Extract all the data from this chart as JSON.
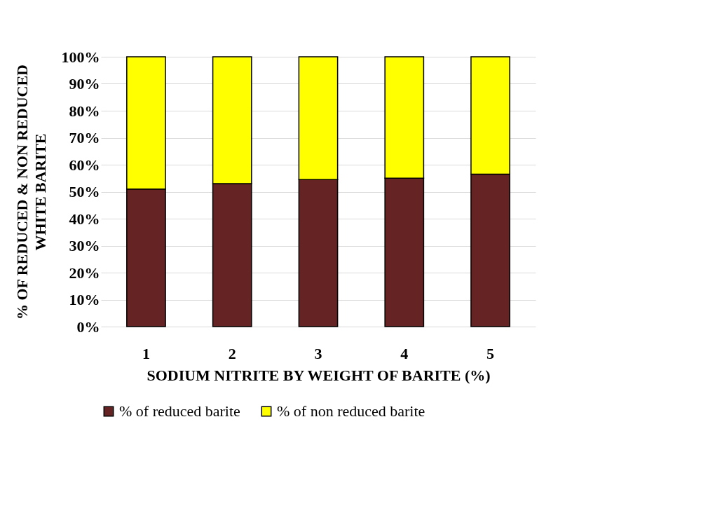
{
  "chart_data": {
    "type": "bar",
    "stacked": true,
    "categories": [
      "1",
      "2",
      "3",
      "4",
      "5"
    ],
    "series": [
      {
        "name": "%  of reduced barite",
        "color": "#652323",
        "values": [
          51,
          53,
          54.5,
          55,
          56.5
        ]
      },
      {
        "name": "%  of non reduced barite",
        "color": "#ffff00",
        "values": [
          49,
          47,
          45.5,
          45,
          43.5
        ]
      }
    ],
    "xlabel": "SODIUM NITRITE BY  WEIGHT OF BARITE (%)",
    "ylabel": "% OF REDUCED & NON   REDUCED\nWHITE BARITE",
    "ylim": [
      0,
      100
    ],
    "yticks": [
      {
        "value": 0,
        "label": "0%"
      },
      {
        "value": 10,
        "label": "10%"
      },
      {
        "value": 20,
        "label": "20%"
      },
      {
        "value": 30,
        "label": "30%"
      },
      {
        "value": 40,
        "label": "40%"
      },
      {
        "value": 50,
        "label": "50%"
      },
      {
        "value": 60,
        "label": "60%"
      },
      {
        "value": 70,
        "label": "70%"
      },
      {
        "value": 80,
        "label": "80%"
      },
      {
        "value": 90,
        "label": "90%"
      },
      {
        "value": 100,
        "label": "100%"
      }
    ],
    "grid": "y",
    "legend": "bottom"
  }
}
